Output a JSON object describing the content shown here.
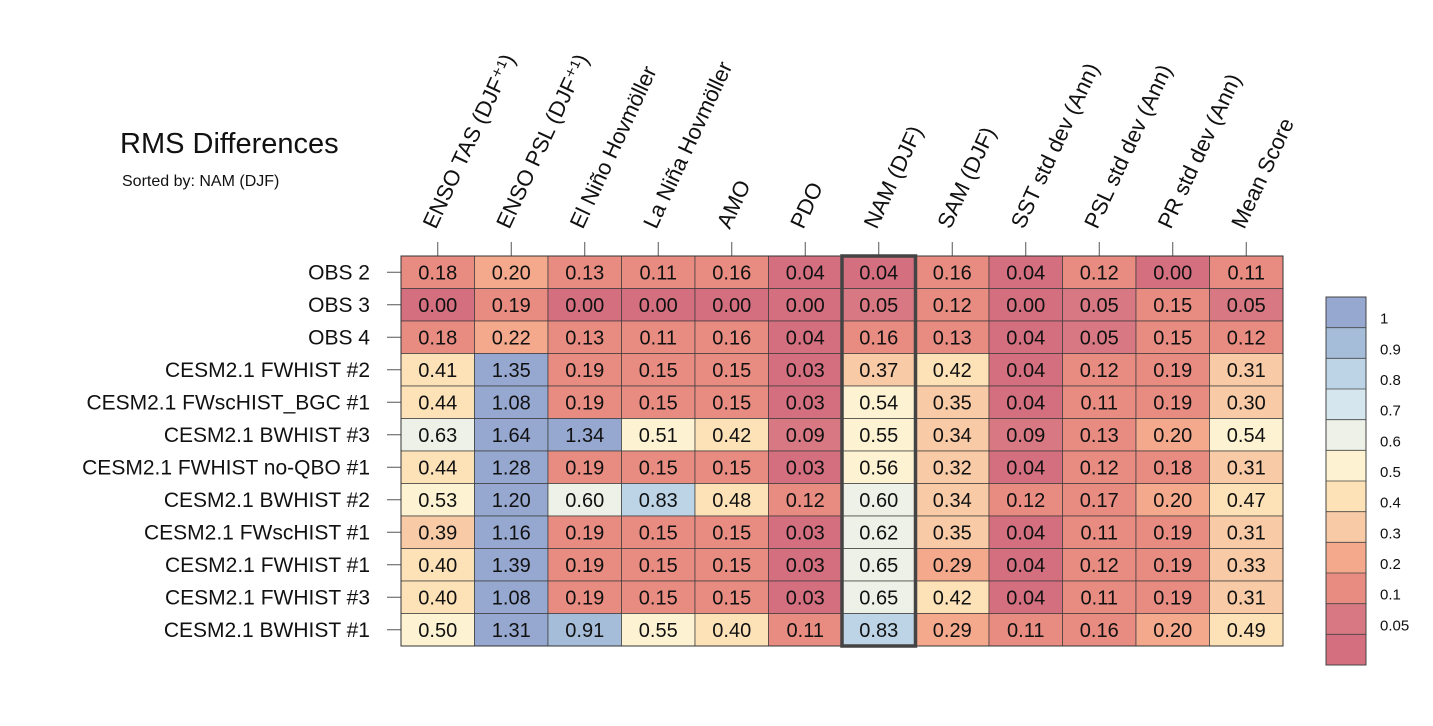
{
  "chart_data": {
    "type": "heatmap",
    "title": "RMS Differences",
    "subtitle": "Sorted by: NAM (DJF)",
    "columns": [
      "ENSO TAS (DJF⁺¹)",
      "ENSO PSL (DJF⁺¹)",
      "El Niño Hovmöller",
      "La Niña Hovmöller",
      "AMO",
      "PDO",
      "NAM (DJF)",
      "SAM (DJF)",
      "SST std dev (Ann)",
      "PSL std dev (Ann)",
      "PR std dev (Ann)",
      "Mean Score"
    ],
    "highlighted_column": "NAM (DJF)",
    "rows": [
      "OBS 2",
      "OBS 3",
      "OBS 4",
      "CESM2.1 FWHIST #2",
      "CESM2.1 FWscHIST_BGC #1",
      "CESM2.1 BWHIST #3",
      "CESM2.1 FWHIST no-QBO #1",
      "CESM2.1 BWHIST #2",
      "CESM2.1 FWscHIST #1",
      "CESM2.1 FWHIST #1",
      "CESM2.1 FWHIST #3",
      "CESM2.1 BWHIST #1"
    ],
    "values": [
      [
        "0.18",
        "0.20",
        "0.13",
        "0.11",
        "0.16",
        "0.04",
        "0.04",
        "0.16",
        "0.04",
        "0.12",
        "0.00",
        "0.11"
      ],
      [
        "0.00",
        "0.19",
        "0.00",
        "0.00",
        "0.00",
        "0.00",
        "0.05",
        "0.12",
        "0.00",
        "0.05",
        "0.15",
        "0.05"
      ],
      [
        "0.18",
        "0.22",
        "0.13",
        "0.11",
        "0.16",
        "0.04",
        "0.16",
        "0.13",
        "0.04",
        "0.05",
        "0.15",
        "0.12"
      ],
      [
        "0.41",
        "1.35",
        "0.19",
        "0.15",
        "0.15",
        "0.03",
        "0.37",
        "0.42",
        "0.04",
        "0.12",
        "0.19",
        "0.31"
      ],
      [
        "0.44",
        "1.08",
        "0.19",
        "0.15",
        "0.15",
        "0.03",
        "0.54",
        "0.35",
        "0.04",
        "0.11",
        "0.19",
        "0.30"
      ],
      [
        "0.63",
        "1.64",
        "1.34",
        "0.51",
        "0.42",
        "0.09",
        "0.55",
        "0.34",
        "0.09",
        "0.13",
        "0.20",
        "0.54"
      ],
      [
        "0.44",
        "1.28",
        "0.19",
        "0.15",
        "0.15",
        "0.03",
        "0.56",
        "0.32",
        "0.04",
        "0.12",
        "0.18",
        "0.31"
      ],
      [
        "0.53",
        "1.20",
        "0.60",
        "0.83",
        "0.48",
        "0.12",
        "0.60",
        "0.34",
        "0.12",
        "0.17",
        "0.20",
        "0.47"
      ],
      [
        "0.39",
        "1.16",
        "0.19",
        "0.15",
        "0.15",
        "0.03",
        "0.62",
        "0.35",
        "0.04",
        "0.11",
        "0.19",
        "0.31"
      ],
      [
        "0.40",
        "1.39",
        "0.19",
        "0.15",
        "0.15",
        "0.03",
        "0.65",
        "0.29",
        "0.04",
        "0.12",
        "0.19",
        "0.33"
      ],
      [
        "0.40",
        "1.08",
        "0.19",
        "0.15",
        "0.15",
        "0.03",
        "0.65",
        "0.42",
        "0.04",
        "0.11",
        "0.19",
        "0.31"
      ],
      [
        "0.50",
        "1.31",
        "0.91",
        "0.55",
        "0.40",
        "0.11",
        "0.83",
        "0.29",
        "0.11",
        "0.16",
        "0.20",
        "0.49"
      ]
    ],
    "colorbar": {
      "tick_labels": [
        "1",
        "0.9",
        "0.8",
        "0.7",
        "0.6",
        "0.5",
        "0.4",
        "0.3",
        "0.2",
        "0.1",
        "0.05"
      ],
      "boundaries": [
        1.0,
        0.9,
        0.8,
        0.7,
        0.6,
        0.5,
        0.4,
        0.3,
        0.2,
        0.1,
        0.05
      ],
      "colors": [
        "#96a8cf",
        "#a6bdd9",
        "#bcd4e6",
        "#d6e6ef",
        "#eef1e8",
        "#fdf3d2",
        "#fde2b8",
        "#f8cba6",
        "#f4a98d",
        "#e88c82",
        "#d87882",
        "#d46f80"
      ]
    }
  }
}
